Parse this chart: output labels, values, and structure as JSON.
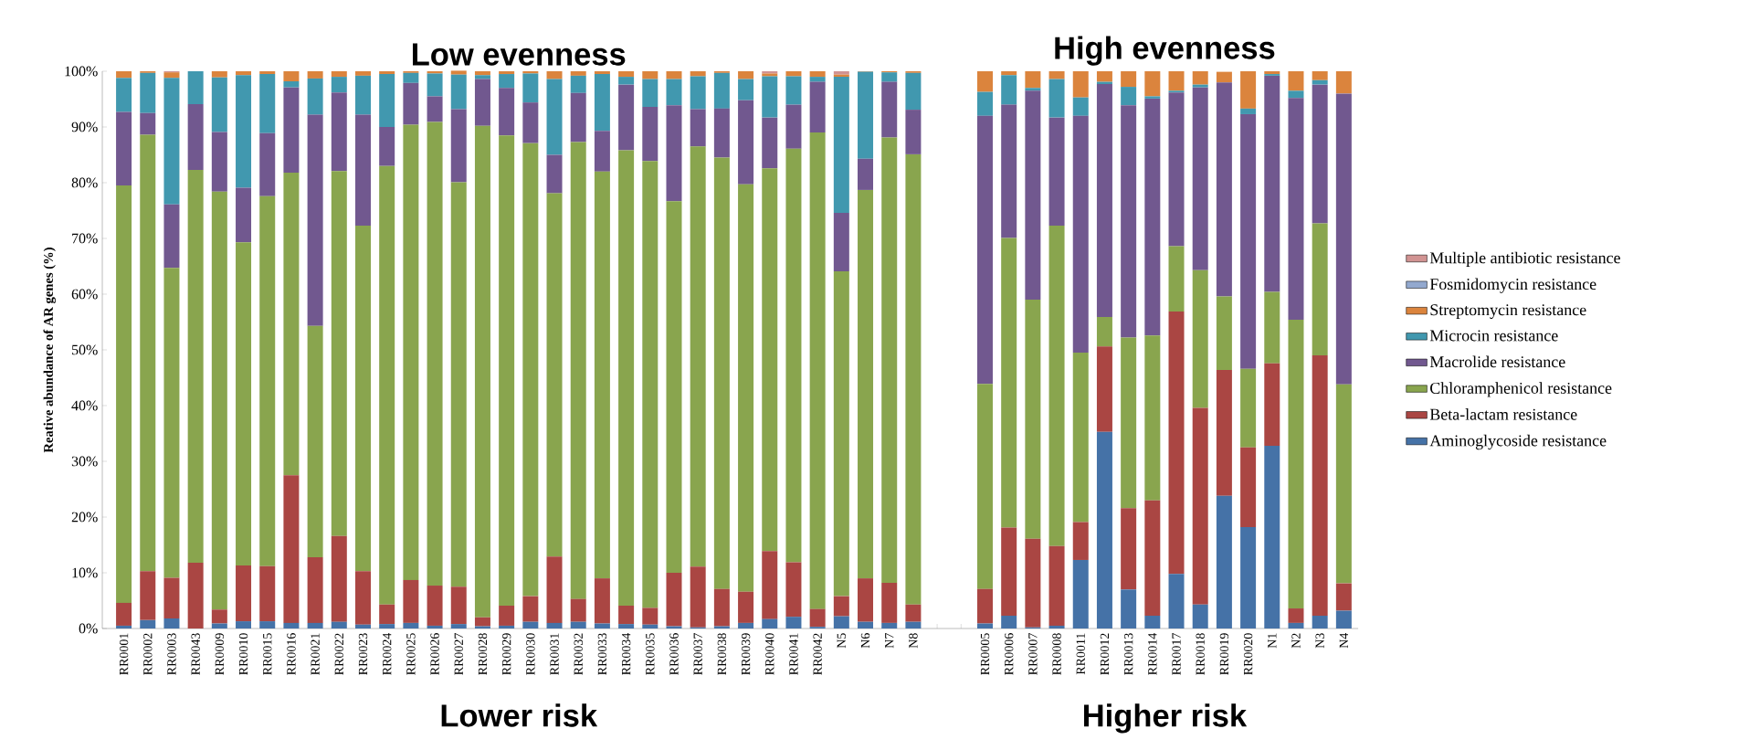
{
  "chart_data": {
    "type": "bar",
    "stacked": true,
    "ylabel": "Reative abundance of AR genes (%)",
    "categories": [
      "RR0001",
      "RR0002",
      "RR0003",
      "RR0043",
      "RR0009",
      "RR0010",
      "RR0015",
      "RR0016",
      "RR0021",
      "RR0022",
      "RR0023",
      "RR0024",
      "RR0025",
      "RR0026",
      "RR0027",
      "RR0028",
      "RR0029",
      "RR0030",
      "RR0031",
      "RR0032",
      "RR0033",
      "RR0034",
      "RR0035",
      "RR0036",
      "RR0037",
      "RR0038",
      "RR0039",
      "RR0040",
      "RR0041",
      "RR0042",
      "N5",
      "N6",
      "N7",
      "N8",
      null,
      null,
      "RR0005",
      "RR0006",
      "RR0007",
      "RR0008",
      "RR0011",
      "RR0012",
      "RR0013",
      "RR0014",
      "RR0017",
      "RR0018",
      "RR0019",
      "RR0020",
      "N1",
      "N2",
      "N3",
      "N4"
    ],
    "series": [
      {
        "name": "Aminoglycoside resistance",
        "color": "#4572a7",
        "values": [
          0.5,
          1.5,
          1.8,
          0,
          0.9,
          1.3,
          1.3,
          1.0,
          1.0,
          1.2,
          0.7,
          0.8,
          1.0,
          0.5,
          0.8,
          0.4,
          0.5,
          1.2,
          1.0,
          1.2,
          0.9,
          0.8,
          0.7,
          0.4,
          0.2,
          0.4,
          1.0,
          1.7,
          2.1,
          0.3,
          2.2,
          1.2,
          1.0,
          1.2,
          null,
          null,
          0.9,
          2.3,
          0.2,
          0.5,
          12.3,
          35.3,
          7.0,
          2.3,
          9.8,
          4.3,
          23.8,
          18.2,
          32.8,
          1.0,
          2.3,
          3.2
        ]
      },
      {
        "name": "Beta-lactam resistance",
        "color": "#aa4643",
        "values": [
          4.1,
          8.8,
          7.3,
          11.8,
          2.5,
          10.0,
          9.9,
          26.5,
          11.8,
          15.4,
          9.6,
          3.5,
          7.7,
          7.2,
          6.7,
          1.6,
          3.6,
          4.6,
          11.9,
          4.1,
          8.1,
          3.3,
          3.0,
          9.6,
          10.9,
          6.7,
          5.6,
          12.2,
          9.8,
          3.2,
          3.6,
          7.8,
          7.2,
          3.1,
          null,
          null,
          6.2,
          15.8,
          15.9,
          14.3,
          6.8,
          15.3,
          14.6,
          20.7,
          47.1,
          35.3,
          22.6,
          14.3,
          14.8,
          2.6,
          46.7,
          4.9
        ]
      },
      {
        "name": "Chloramphenicol resistance",
        "color": "#89a54e",
        "values": [
          74.9,
          78.3,
          55.6,
          70.5,
          75.0,
          58.0,
          66.4,
          54.3,
          41.5,
          65.5,
          62.0,
          78.7,
          81.7,
          83.2,
          72.6,
          88.2,
          84.4,
          81.3,
          65.2,
          82.0,
          73.0,
          81.7,
          80.2,
          66.7,
          75.4,
          77.4,
          73.1,
          68.7,
          74.2,
          85.5,
          58.3,
          69.7,
          79.9,
          80.8,
          null,
          null,
          36.8,
          52.0,
          42.9,
          57.5,
          30.4,
          5.3,
          30.6,
          29.6,
          11.7,
          24.7,
          13.2,
          14.1,
          12.8,
          51.8,
          23.7,
          35.7
        ]
      },
      {
        "name": "Macrolide resistance",
        "color": "#71588f",
        "values": [
          13.2,
          3.9,
          11.4,
          11.8,
          10.7,
          9.8,
          11.3,
          15.3,
          37.9,
          14.1,
          19.9,
          7.0,
          7.5,
          4.6,
          13.1,
          8.4,
          8.5,
          7.3,
          6.9,
          8.8,
          7.3,
          11.8,
          9.7,
          17.2,
          6.7,
          8.8,
          15.1,
          9.1,
          7.9,
          9.1,
          10.5,
          5.6,
          10.0,
          8.0,
          null,
          null,
          48.1,
          23.9,
          37.5,
          19.4,
          42.5,
          41.8,
          41.7,
          42.5,
          27.6,
          32.8,
          38.4,
          45.7,
          38.8,
          39.8,
          24.9,
          52.2
        ]
      },
      {
        "name": "Microcin resistance",
        "color": "#4198af",
        "values": [
          6.1,
          7.2,
          22.7,
          5.9,
          9.8,
          20.2,
          10.6,
          1.1,
          6.5,
          2.8,
          7.0,
          9.5,
          1.8,
          4.1,
          6.2,
          0.7,
          2.5,
          5.2,
          13.6,
          3.1,
          10.2,
          1.4,
          5.0,
          4.7,
          5.9,
          6.4,
          3.8,
          7.4,
          5.1,
          0.9,
          24.4,
          15.6,
          1.7,
          6.6,
          null,
          null,
          4.3,
          5.3,
          0.5,
          6.9,
          3.3,
          0.4,
          3.3,
          0.4,
          0.3,
          0.5,
          null,
          1.0,
          0.3,
          1.3,
          0.8,
          0
        ]
      },
      {
        "name": "Streptomycin resistance",
        "color": "#db843d",
        "values": [
          1.2,
          0.3,
          1.0,
          0,
          1.1,
          0.7,
          0.5,
          1.8,
          1.3,
          1.0,
          0.8,
          0.5,
          0.3,
          0.4,
          0.7,
          0.7,
          0.5,
          0.4,
          1.4,
          0.8,
          0.5,
          1.0,
          1.4,
          1.4,
          0.9,
          0.3,
          1.4,
          0.5,
          0.9,
          1.0,
          0.4,
          0.1,
          0.2,
          0.3,
          null,
          null,
          3.7,
          0.7,
          3.0,
          1.4,
          4.7,
          1.9,
          2.8,
          4.5,
          3.5,
          2.4,
          1.9,
          6.7,
          0.5,
          3.5,
          1.6,
          4.0
        ]
      },
      {
        "name": "Fosmidomycin resistance",
        "color": "#93a9cf",
        "values": [
          0,
          0,
          0,
          0,
          0,
          0,
          0,
          0,
          0,
          0,
          0,
          0,
          0,
          0,
          0,
          0,
          0,
          0,
          0,
          0,
          0,
          0,
          0,
          0,
          0,
          0,
          0,
          0,
          0,
          0,
          0,
          0,
          0,
          0,
          null,
          null,
          0,
          0,
          0,
          0,
          0,
          0,
          0,
          0,
          0,
          0,
          0,
          0,
          0,
          0,
          0,
          0
        ]
      },
      {
        "name": "Multiple antibiotic resistance",
        "color": "#d19392",
        "values": [
          0,
          0,
          0.2,
          0,
          0,
          0,
          0,
          0,
          0,
          0,
          0,
          0,
          0,
          0,
          0,
          0,
          0,
          0,
          0,
          0,
          0,
          0,
          0,
          0,
          0,
          0,
          0,
          0.4,
          0,
          0,
          0.6,
          0,
          0,
          0,
          null,
          null,
          0,
          0,
          0,
          0,
          0,
          0,
          0,
          0,
          0,
          0,
          0,
          0,
          0,
          0,
          0,
          0
        ]
      }
    ],
    "ylim": [
      0,
      100
    ],
    "yticks": [
      {
        "value": 0,
        "label": "0%"
      },
      {
        "value": 10,
        "label": "10%"
      },
      {
        "value": 20,
        "label": "20%"
      },
      {
        "value": 30,
        "label": "30%"
      },
      {
        "value": 40,
        "label": "40%"
      },
      {
        "value": 50,
        "label": "50%"
      },
      {
        "value": 60,
        "label": "60%"
      },
      {
        "value": 70,
        "label": "70%"
      },
      {
        "value": 80,
        "label": "80%"
      },
      {
        "value": 90,
        "label": "90%"
      },
      {
        "value": 100,
        "label": "100%"
      }
    ],
    "legend": "right",
    "annotations": [
      "Low evenness",
      "High evenness",
      "Lower risk",
      "Higher risk"
    ]
  }
}
